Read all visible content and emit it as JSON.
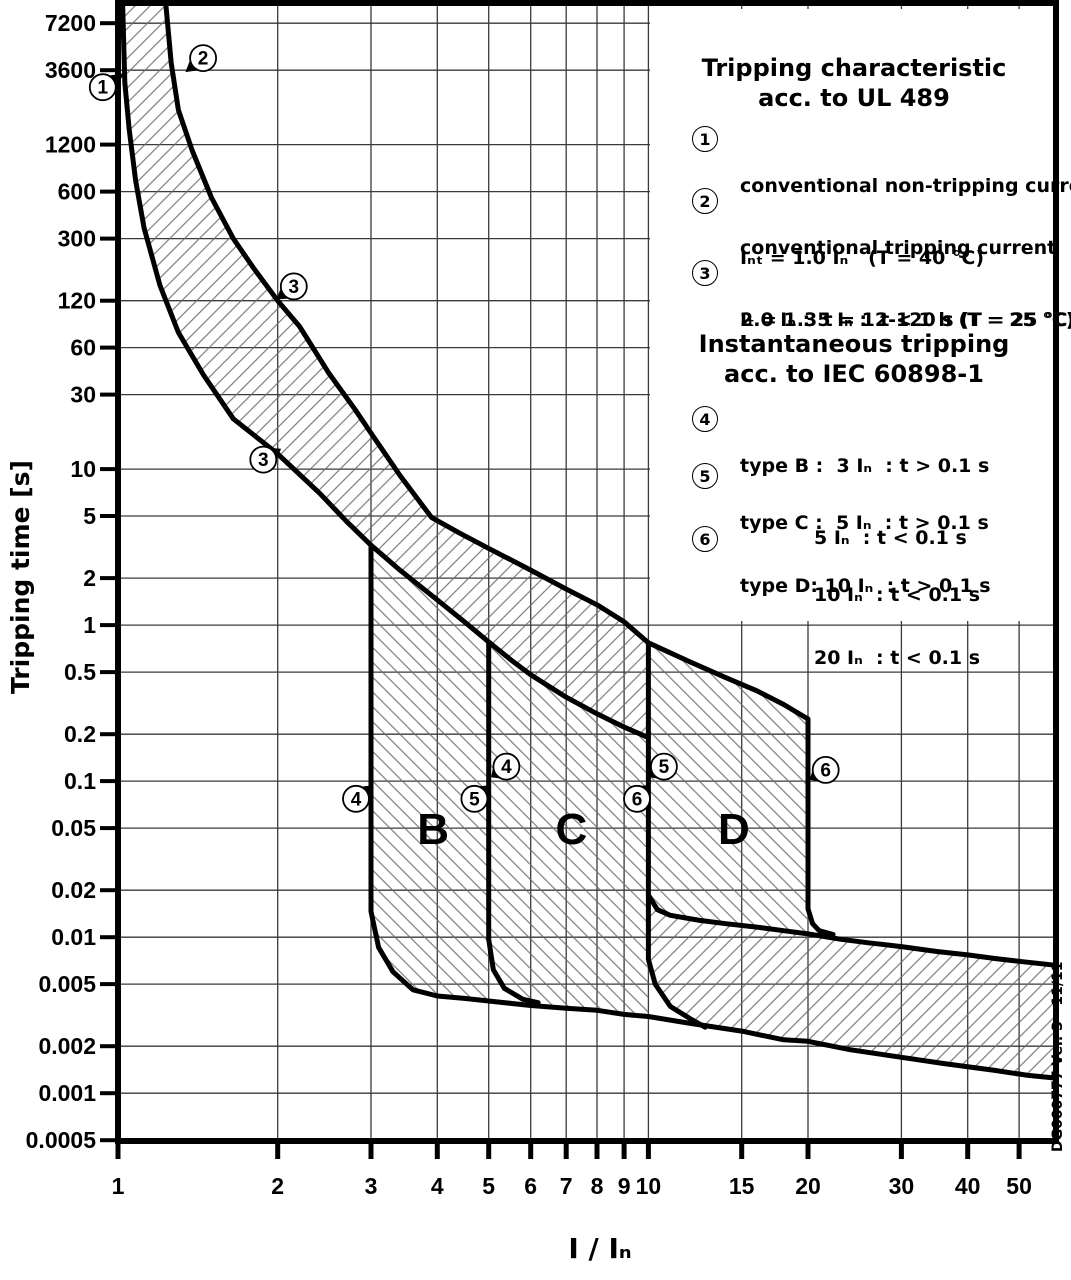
{
  "chart_data": {
    "type": "line",
    "xlabel": "I / Iₙ",
    "ylabel": "Tripping time [s]",
    "x_scale": "log",
    "y_scale": "log",
    "xlim": [
      1,
      58.7
    ],
    "ylim": [
      0.000494,
      9700
    ],
    "grid": true,
    "xticks": [
      1,
      2,
      3,
      4,
      5,
      6,
      7,
      8,
      9,
      10,
      15,
      20,
      30,
      40,
      50
    ],
    "xtick_labels": [
      "1",
      "2",
      "3",
      "4",
      "5",
      "6",
      "7",
      "8",
      "9",
      "10",
      "15",
      "20",
      "30",
      "40",
      "50"
    ],
    "yticks": [
      7200,
      3600,
      1200,
      600,
      300,
      120,
      60,
      30,
      10,
      5,
      2,
      1,
      0.5,
      0.2,
      0.1,
      0.05,
      0.02,
      0.01,
      0.005,
      0.002,
      0.001,
      0.0005
    ],
    "ytick_labels": [
      "7200",
      "3600",
      "1200",
      "600",
      "300",
      "120",
      "60",
      "30",
      "10",
      "5",
      "2",
      "1",
      "0.5",
      "0.2",
      "0.1",
      "0.05",
      "0.02",
      "0.01",
      "0.005",
      "0.002",
      "0.001",
      "0.0005"
    ],
    "series": [
      {
        "name": "lower-thermal-curve-non-tripping",
        "points": [
          [
            1.02,
            9700
          ],
          [
            1.03,
            3000
          ],
          [
            1.05,
            1500
          ],
          [
            1.08,
            700
          ],
          [
            1.12,
            350
          ],
          [
            1.2,
            150
          ],
          [
            1.3,
            75
          ],
          [
            1.45,
            40
          ],
          [
            1.65,
            21
          ],
          [
            2,
            12.5
          ],
          [
            2.4,
            7
          ],
          [
            2.7,
            4.6
          ],
          [
            3,
            3.25
          ],
          [
            3.4,
            2.25
          ],
          [
            4,
            1.45
          ],
          [
            4.5,
            1.05
          ],
          [
            5,
            0.78
          ],
          [
            5.5,
            0.6
          ],
          [
            6,
            0.48
          ],
          [
            7,
            0.345
          ],
          [
            8,
            0.27
          ],
          [
            9,
            0.222
          ],
          [
            10,
            0.19
          ]
        ]
      },
      {
        "name": "upper-thermal-curve-tripping",
        "points": [
          [
            1.23,
            9700
          ],
          [
            1.26,
            4000
          ],
          [
            1.3,
            2000
          ],
          [
            1.38,
            1100
          ],
          [
            1.5,
            550
          ],
          [
            1.65,
            300
          ],
          [
            1.8,
            195
          ],
          [
            2,
            120
          ],
          [
            2.2,
            82
          ],
          [
            2.5,
            41
          ],
          [
            2.8,
            24
          ],
          [
            3,
            17
          ],
          [
            3.4,
            9.1
          ],
          [
            3.9,
            4.9
          ],
          [
            4.4,
            3.9
          ],
          [
            5,
            3.1
          ],
          [
            6,
            2.25
          ],
          [
            7,
            1.7
          ],
          [
            8,
            1.35
          ],
          [
            9,
            1.05
          ],
          [
            10,
            0.77
          ],
          [
            12,
            0.58
          ],
          [
            14,
            0.46
          ],
          [
            16,
            0.38
          ],
          [
            18,
            0.31
          ],
          [
            20,
            0.25
          ]
        ]
      },
      {
        "name": "type-b-3in-limit-and-lower-envelope",
        "points": [
          [
            3,
            3.25
          ],
          [
            3,
            0.0146
          ],
          [
            3.1,
            0.0086
          ],
          [
            3.3,
            0.006
          ],
          [
            3.6,
            0.0046
          ],
          [
            4,
            0.0042
          ],
          [
            4.5,
            0.00405
          ],
          [
            5,
            0.0039
          ],
          [
            6,
            0.00365
          ],
          [
            7,
            0.0035
          ],
          [
            8,
            0.0034
          ],
          [
            9,
            0.0032
          ],
          [
            10,
            0.0031
          ],
          [
            12,
            0.0028
          ],
          [
            15,
            0.0025
          ],
          [
            18,
            0.0022
          ],
          [
            20,
            0.00215
          ],
          [
            24,
            0.0019
          ],
          [
            30,
            0.0017
          ],
          [
            36,
            0.00155
          ],
          [
            45,
            0.0014
          ],
          [
            52,
            0.0013
          ],
          [
            58.7,
            0.00125
          ]
        ]
      },
      {
        "name": "type-b-5in-type-c-limit",
        "points": [
          [
            5,
            0.78
          ],
          [
            5,
            0.0097
          ],
          [
            5.1,
            0.0062
          ],
          [
            5.35,
            0.0047
          ],
          [
            5.8,
            0.004
          ],
          [
            6.2,
            0.0038
          ]
        ]
      },
      {
        "name": "type-c-10in-type-d-limit",
        "points": [
          [
            10,
            0.77
          ],
          [
            10,
            0.0072
          ],
          [
            10.3,
            0.005
          ],
          [
            11,
            0.0036
          ],
          [
            12,
            0.003
          ],
          [
            12.8,
            0.00265
          ]
        ]
      },
      {
        "name": "instantaneous-upper-floor",
        "points": [
          [
            10,
            0.0186
          ],
          [
            10.4,
            0.015
          ],
          [
            11,
            0.0138
          ],
          [
            12.5,
            0.0128
          ],
          [
            14,
            0.0122
          ],
          [
            16,
            0.0116
          ],
          [
            18,
            0.011
          ],
          [
            20,
            0.0105
          ],
          [
            23,
            0.0097
          ],
          [
            26,
            0.0092
          ],
          [
            30,
            0.0087
          ],
          [
            35,
            0.0081
          ],
          [
            40,
            0.0077
          ],
          [
            45,
            0.0073
          ],
          [
            50,
            0.007
          ],
          [
            58.7,
            0.0066
          ]
        ]
      },
      {
        "name": "type-d-20in-limit",
        "points": [
          [
            20,
            0.25
          ],
          [
            20,
            0.0152
          ],
          [
            20.4,
            0.0122
          ],
          [
            21,
            0.011
          ],
          [
            22.3,
            0.0104
          ]
        ]
      }
    ],
    "regions": [
      {
        "name": "thermal-band",
        "hatch": "fwd",
        "points": [
          [
            1.02,
            9700
          ],
          [
            1.03,
            3000
          ],
          [
            1.05,
            1500
          ],
          [
            1.08,
            700
          ],
          [
            1.12,
            350
          ],
          [
            1.2,
            150
          ],
          [
            1.3,
            75
          ],
          [
            1.45,
            40
          ],
          [
            1.65,
            21
          ],
          [
            2,
            12.5
          ],
          [
            2.4,
            7
          ],
          [
            2.7,
            4.6
          ],
          [
            3,
            3.25
          ],
          [
            3.4,
            2.25
          ],
          [
            4,
            1.45
          ],
          [
            4.5,
            1.05
          ],
          [
            5,
            0.78
          ],
          [
            5.5,
            0.6
          ],
          [
            6,
            0.48
          ],
          [
            7,
            0.345
          ],
          [
            8,
            0.27
          ],
          [
            9,
            0.222
          ],
          [
            10,
            0.19
          ],
          [
            10,
            0.77
          ],
          [
            9,
            1.05
          ],
          [
            8,
            1.35
          ],
          [
            7,
            1.7
          ],
          [
            6,
            2.25
          ],
          [
            5,
            3.1
          ],
          [
            4.4,
            3.9
          ],
          [
            3.9,
            4.9
          ],
          [
            3.4,
            9.1
          ],
          [
            3,
            17
          ],
          [
            2.8,
            24
          ],
          [
            2.5,
            41
          ],
          [
            2.2,
            82
          ],
          [
            2,
            120
          ],
          [
            1.8,
            195
          ],
          [
            1.65,
            300
          ],
          [
            1.5,
            550
          ],
          [
            1.38,
            1100
          ],
          [
            1.3,
            2000
          ],
          [
            1.26,
            4000
          ],
          [
            1.23,
            9700
          ]
        ]
      },
      {
        "name": "zone-b",
        "hatch": "back",
        "points": [
          [
            3,
            3.25
          ],
          [
            3.4,
            2.25
          ],
          [
            4,
            1.45
          ],
          [
            4.5,
            1.05
          ],
          [
            5,
            0.78
          ],
          [
            5,
            0.0039
          ],
          [
            4.5,
            0.00405
          ],
          [
            4,
            0.0042
          ],
          [
            3.6,
            0.0046
          ],
          [
            3.3,
            0.006
          ],
          [
            3.1,
            0.0086
          ],
          [
            3,
            0.0146
          ]
        ]
      },
      {
        "name": "zone-c",
        "hatch": "back",
        "points": [
          [
            5,
            0.78
          ],
          [
            5.5,
            0.6
          ],
          [
            6,
            0.48
          ],
          [
            7,
            0.345
          ],
          [
            8,
            0.27
          ],
          [
            9,
            0.222
          ],
          [
            10,
            0.19
          ],
          [
            10,
            0.0031
          ],
          [
            9,
            0.0032
          ],
          [
            8,
            0.0034
          ],
          [
            7,
            0.0035
          ],
          [
            6.2,
            0.0038
          ],
          [
            5.8,
            0.004
          ],
          [
            5.35,
            0.0047
          ],
          [
            5.1,
            0.0062
          ],
          [
            5,
            0.0097
          ]
        ]
      },
      {
        "name": "zone-d",
        "hatch": "back",
        "points": [
          [
            10,
            0.77
          ],
          [
            12,
            0.58
          ],
          [
            14,
            0.46
          ],
          [
            16,
            0.38
          ],
          [
            18,
            0.31
          ],
          [
            20,
            0.25
          ],
          [
            20,
            0.0105
          ],
          [
            18,
            0.011
          ],
          [
            16,
            0.0116
          ],
          [
            14,
            0.0122
          ],
          [
            12.5,
            0.0128
          ],
          [
            11,
            0.0138
          ],
          [
            10.4,
            0.015
          ],
          [
            10,
            0.0186
          ]
        ]
      },
      {
        "name": "instantaneous-band",
        "hatch": "fwd",
        "points": [
          [
            10,
            0.0186
          ],
          [
            10.4,
            0.015
          ],
          [
            11,
            0.0138
          ],
          [
            12.5,
            0.0128
          ],
          [
            14,
            0.0122
          ],
          [
            16,
            0.0116
          ],
          [
            18,
            0.011
          ],
          [
            20,
            0.0105
          ],
          [
            23,
            0.0097
          ],
          [
            26,
            0.0092
          ],
          [
            30,
            0.0087
          ],
          [
            35,
            0.0081
          ],
          [
            40,
            0.0077
          ],
          [
            45,
            0.0073
          ],
          [
            50,
            0.007
          ],
          [
            58.7,
            0.0066
          ],
          [
            58.7,
            0.00125
          ],
          [
            52,
            0.0013
          ],
          [
            45,
            0.0014
          ],
          [
            36,
            0.00155
          ],
          [
            30,
            0.0017
          ],
          [
            24,
            0.0019
          ],
          [
            20,
            0.00215
          ],
          [
            18,
            0.0022
          ],
          [
            15,
            0.0025
          ],
          [
            12.8,
            0.00265
          ],
          [
            12,
            0.003
          ],
          [
            11,
            0.0036
          ],
          [
            10.3,
            0.005
          ],
          [
            10,
            0.0072
          ]
        ]
      }
    ],
    "markers": [
      {
        "label": "1",
        "center": [
          0.936,
          2800
        ],
        "tip": [
          1.03,
          3450
        ]
      },
      {
        "label": "2",
        "center": [
          1.447,
          4300
        ],
        "tip": [
          1.34,
          3500
        ]
      },
      {
        "label": "3",
        "center": [
          2.145,
          148
        ],
        "tip": [
          1.99,
          122
        ]
      },
      {
        "label": "3",
        "center": [
          1.879,
          11.5
        ],
        "tip": [
          2.03,
          13.5
        ]
      },
      {
        "label": "4",
        "center": [
          2.81,
          0.077
        ],
        "tip": [
          3.03,
          0.094
        ]
      },
      {
        "label": "5",
        "center": [
          4.7,
          0.077
        ],
        "tip": [
          5.03,
          0.094
        ]
      },
      {
        "label": "6",
        "center": [
          9.52,
          0.077
        ],
        "tip": [
          10.04,
          0.094
        ]
      },
      {
        "label": "4",
        "center": [
          5.4,
          0.124
        ],
        "tip": [
          5.05,
          0.106
        ]
      },
      {
        "label": "5",
        "center": [
          10.7,
          0.124
        ],
        "tip": [
          10.06,
          0.106
        ]
      },
      {
        "label": "6",
        "center": [
          21.6,
          0.118
        ],
        "tip": [
          20.15,
          0.102
        ]
      }
    ],
    "zone_labels": [
      {
        "text": "B",
        "x": 3.93,
        "t": 0.05
      },
      {
        "text": "C",
        "x": 7.16,
        "t": 0.05
      },
      {
        "text": "D",
        "x": 14.5,
        "t": 0.05
      }
    ]
  },
  "legend_ul": {
    "title_line1": "Tripping characteristic",
    "title_line2": "acc. to UL 489",
    "items": [
      {
        "num": "1",
        "line1": "conventional non-tripping current",
        "line2": "Iₙₜ = 1.0 Iₙ   (T = 40 °C)"
      },
      {
        "num": "2",
        "line1": "conventional tripping current",
        "line2": "Iₜ = 1.35 Iₙ :  t < 1 h (T = 25 °C)"
      },
      {
        "num": "3",
        "line1": "2.0 Iₙ :  t = 12-120 s (T = 25 °C)",
        "line2": ""
      }
    ]
  },
  "legend_iec": {
    "title_line1": "Instantaneous tripping",
    "title_line2": "acc. to IEC 60898-1",
    "items": [
      {
        "num": "4",
        "line1": "type B :  3 Iₙ  : t > 0.1 s",
        "line2": "5 Iₙ  : t < 0.1 s"
      },
      {
        "num": "5",
        "line1": "type C :  5 Iₙ  : t > 0.1 s",
        "line2": "10 Iₙ  : t < 0.1 s"
      },
      {
        "num": "6",
        "line1": "type D: 10 Iₙ  : t > 0.1 s",
        "line2": "20 Iₙ  : t < 0.1 s"
      }
    ]
  },
  "axis": {
    "x_title": "I / Iₙ",
    "y_title": "Tripping time [s]"
  },
  "watermark": "DG000777 Ver. 3 - 11/11"
}
